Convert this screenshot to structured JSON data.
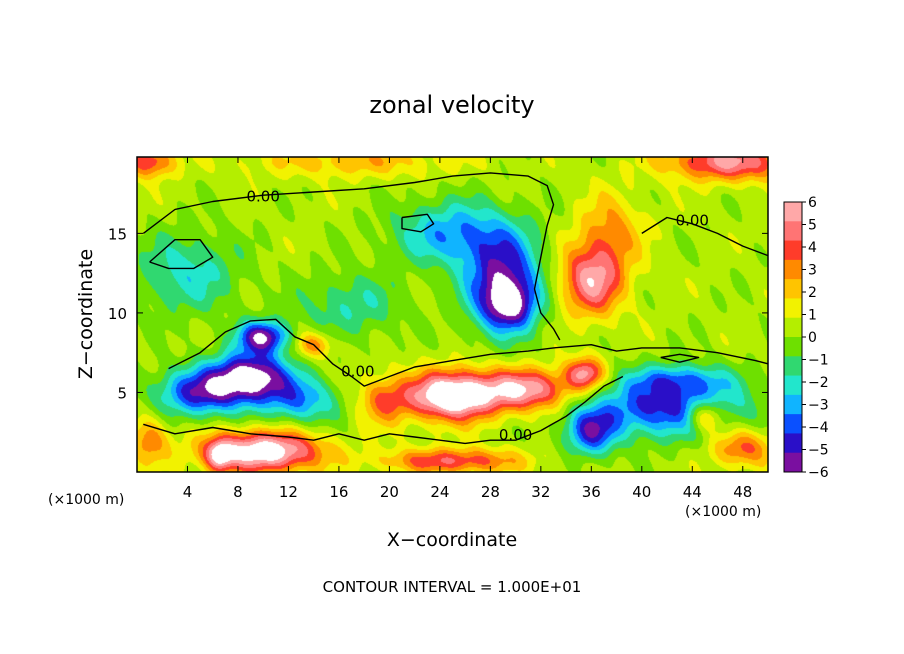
{
  "chart_data": {
    "type": "heatmap",
    "title": "zonal velocity",
    "xlabel": "X−coordinate",
    "ylabel": "Z−coordinate",
    "x_unit_left": "(×1000 m)",
    "x_unit_right": "(×1000 m)",
    "xlim": [
      0,
      50
    ],
    "ylim": [
      0,
      19.8
    ],
    "x_ticks": [
      4,
      8,
      12,
      16,
      20,
      24,
      28,
      32,
      36,
      40,
      44,
      48
    ],
    "x_tick_labels": [
      "4",
      "8",
      "12",
      "16",
      "20",
      "24",
      "28",
      "32",
      "36",
      "40",
      "44",
      "48"
    ],
    "y_ticks": [
      5,
      10,
      15
    ],
    "y_tick_labels": [
      "5",
      "10",
      "15"
    ],
    "colorbar": {
      "range": [
        -6,
        6
      ],
      "ticks": [
        6,
        5,
        4,
        3,
        2,
        1,
        0,
        -1,
        -2,
        -3,
        -4,
        -5,
        -6
      ],
      "tick_labels": [
        "6",
        "5",
        "4",
        "3",
        "2",
        "1",
        "0",
        "−1",
        "−2",
        "−3",
        "−4",
        "−5",
        "−6"
      ],
      "colors": [
        "#7a0fa0",
        "#2a0fc8",
        "#0a50ff",
        "#10b4ff",
        "#22e6cc",
        "#30d870",
        "#6ee000",
        "#b4ee00",
        "#f2f200",
        "#ffc400",
        "#ff8a00",
        "#ff3c2a",
        "#ff7474",
        "#ffa8a8"
      ],
      "over_color": "#ffffff",
      "under_color": "#ffffff"
    },
    "background_value": 0.3,
    "features": [
      {
        "x": 29,
        "z": 12,
        "value": -5.5,
        "sx": 3.0,
        "sz": 3.0
      },
      {
        "x": 29.5,
        "z": 10.5,
        "value": -4,
        "sx": 2.0,
        "sz": 1.5
      },
      {
        "x": 25,
        "z": 15,
        "value": -3.5,
        "sx": 4.5,
        "sz": 2.0
      },
      {
        "x": 36,
        "z": 12,
        "value": 5.0,
        "sx": 2.5,
        "sz": 2.2
      },
      {
        "x": 37.5,
        "z": 15,
        "value": 2.5,
        "sx": 2.5,
        "sz": 2.5
      },
      {
        "x": 9,
        "z": 6,
        "value": -7,
        "sx": 3.0,
        "sz": 1.5
      },
      {
        "x": 10,
        "z": 8.5,
        "value": -6,
        "sx": 2.0,
        "sz": 1.0
      },
      {
        "x": 5,
        "z": 5,
        "value": -5,
        "sx": 3.5,
        "sz": 1.5
      },
      {
        "x": 13,
        "z": 4.5,
        "value": -3.5,
        "sx": 3.0,
        "sz": 1.5
      },
      {
        "x": 25,
        "z": 4.8,
        "value": 8,
        "sx": 3.5,
        "sz": 1.5
      },
      {
        "x": 31,
        "z": 5.2,
        "value": 5.5,
        "sx": 3.5,
        "sz": 1.3
      },
      {
        "x": 35.5,
        "z": 6.2,
        "value": 5,
        "sx": 1.5,
        "sz": 1.0
      },
      {
        "x": 19.5,
        "z": 4.5,
        "value": 3,
        "sx": 2.0,
        "sz": 1.5
      },
      {
        "x": 10,
        "z": 1.3,
        "value": 7,
        "sx": 4.5,
        "sz": 1.3
      },
      {
        "x": 25,
        "z": 0.7,
        "value": 4,
        "sx": 5.5,
        "sz": 0.8
      },
      {
        "x": 42,
        "z": 4.0,
        "value": -5,
        "sx": 6.0,
        "sz": 1.8
      },
      {
        "x": 36,
        "z": 2.5,
        "value": -4.5,
        "sx": 2.0,
        "sz": 1.5
      },
      {
        "x": 45,
        "z": 3.5,
        "value": 4.5,
        "sx": 1.5,
        "sz": 1.0
      },
      {
        "x": 43,
        "z": 5.8,
        "value": -3,
        "sx": 4.0,
        "sz": 1.0
      },
      {
        "x": 4,
        "z": 12.5,
        "value": -2.5,
        "sx": 4.0,
        "sz": 2.5
      },
      {
        "x": 17,
        "z": 10.5,
        "value": -2,
        "sx": 4.0,
        "sz": 2.0
      },
      {
        "x": 47,
        "z": 19.5,
        "value": 5,
        "sx": 5.0,
        "sz": 1.2
      },
      {
        "x": 17,
        "z": 19.5,
        "value": 2,
        "sx": 8.0,
        "sz": 1.0
      },
      {
        "x": 1,
        "z": 19.5,
        "value": 4,
        "sx": 2.0,
        "sz": 1.0
      },
      {
        "x": 6.5,
        "z": 1.0,
        "value": 4,
        "sx": 1.0,
        "sz": 1.0
      },
      {
        "x": 1,
        "z": 2,
        "value": 3,
        "sx": 1.5,
        "sz": 1.5
      },
      {
        "x": 14,
        "z": 8,
        "value": 3,
        "sx": 1.5,
        "sz": 0.8
      },
      {
        "x": 48,
        "z": 1.5,
        "value": 3.5,
        "sx": 2.5,
        "sz": 1.2
      }
    ],
    "contours": [
      {
        "label": "0.00",
        "label_x": 10.0,
        "label_z": 17.0,
        "points": [
          [
            0.5,
            15
          ],
          [
            3,
            16.5
          ],
          [
            6,
            17
          ],
          [
            10,
            17.4
          ],
          [
            14,
            17.6
          ],
          [
            18,
            17.8
          ],
          [
            22,
            18.2
          ],
          [
            25,
            18.6
          ],
          [
            28,
            18.8
          ],
          [
            31,
            18.6
          ],
          [
            32.5,
            18.0
          ],
          [
            33,
            16.8
          ],
          [
            32.5,
            15.5
          ],
          [
            32,
            13.5
          ],
          [
            31.5,
            11.5
          ],
          [
            32,
            10.0
          ],
          [
            33,
            9.0
          ],
          [
            33.5,
            8.3
          ]
        ]
      },
      {
        "label": "0.00",
        "label_x": 44.0,
        "label_z": 15.5,
        "points": [
          [
            40,
            15
          ],
          [
            42,
            16
          ],
          [
            44,
            15.6
          ],
          [
            46,
            15
          ],
          [
            48,
            14.2
          ],
          [
            50,
            13.6
          ]
        ]
      },
      {
        "label": "0.00",
        "label_x": 17.5,
        "label_z": 6.0,
        "points": [
          [
            2.5,
            6.5
          ],
          [
            5,
            7.5
          ],
          [
            7,
            8.8
          ],
          [
            9,
            9.5
          ],
          [
            11,
            9.6
          ],
          [
            12.5,
            8.5
          ],
          [
            14,
            8.0
          ],
          [
            15.5,
            6.8
          ],
          [
            17,
            6.0
          ],
          [
            18,
            5.4
          ],
          [
            20,
            6.0
          ],
          [
            22,
            6.6
          ],
          [
            25,
            7.0
          ],
          [
            28,
            7.4
          ],
          [
            31,
            7.6
          ],
          [
            33,
            7.8
          ],
          [
            36,
            8.0
          ],
          [
            38,
            7.6
          ],
          [
            40,
            7.8
          ],
          [
            43,
            7.8
          ],
          [
            46,
            7.5
          ],
          [
            49,
            7.0
          ],
          [
            50,
            6.8
          ]
        ]
      },
      {
        "label": "0.00",
        "label_x": 30.0,
        "label_z": 2.0,
        "points": [
          [
            0.5,
            3.0
          ],
          [
            3,
            2.4
          ],
          [
            6,
            2.8
          ],
          [
            9,
            2.4
          ],
          [
            12,
            2.2
          ],
          [
            14,
            2.0
          ],
          [
            16,
            2.4
          ],
          [
            18,
            2.0
          ],
          [
            20,
            2.4
          ],
          [
            22,
            2.2
          ],
          [
            24,
            2.0
          ],
          [
            26,
            1.8
          ],
          [
            28,
            2.0
          ],
          [
            30,
            2.0
          ],
          [
            32,
            2.6
          ],
          [
            34,
            3.5
          ],
          [
            35.5,
            4.4
          ],
          [
            37,
            5.4
          ],
          [
            38.5,
            6.0
          ]
        ]
      },
      {
        "label": "",
        "label_x": 0,
        "label_z": 0,
        "points": [
          [
            21,
            16
          ],
          [
            23,
            16.2
          ],
          [
            23.5,
            15.6
          ],
          [
            22.5,
            15.1
          ],
          [
            21,
            15.3
          ],
          [
            21,
            16
          ]
        ]
      },
      {
        "label": "",
        "label_x": 0,
        "label_z": 0,
        "points": [
          [
            1,
            13.2
          ],
          [
            3,
            14.6
          ],
          [
            5,
            14.6
          ],
          [
            6,
            13.5
          ],
          [
            4.5,
            12.8
          ],
          [
            2.5,
            12.8
          ],
          [
            1,
            13.2
          ]
        ]
      },
      {
        "label": "",
        "label_x": 0,
        "label_z": 0,
        "points": [
          [
            41.5,
            7.2
          ],
          [
            43,
            7.4
          ],
          [
            44.5,
            7.2
          ],
          [
            43,
            6.9
          ],
          [
            41.5,
            7.2
          ]
        ]
      }
    ]
  },
  "footer": "CONTOUR INTERVAL = 1.000E+01"
}
